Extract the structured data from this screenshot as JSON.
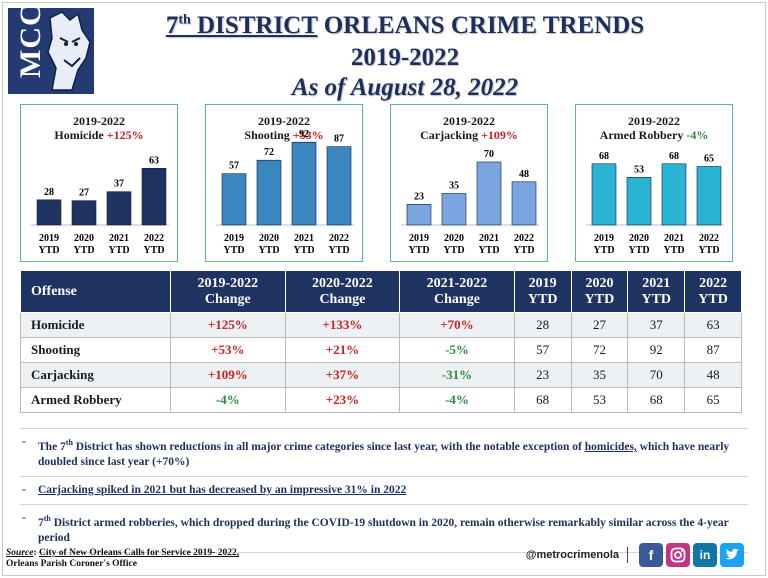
{
  "header": {
    "logo_text": "MCC",
    "title_line1_sup": "th",
    "title_line1_a": "7",
    "title_line1_b": " DISTRICT",
    "title_line1_c": " ORLEANS CRIME TRENDS",
    "title_line2": "2019-2022",
    "title_line3": "As of August 28, 2022"
  },
  "colors": {
    "homicide": "#1f3362",
    "shooting": "#3a86bf",
    "carjacking": "#7aa6e0",
    "armed_robbery": "#2bb3d4",
    "increase": "#cc1f1f",
    "decrease": "#2e8b3e"
  },
  "chart_data": [
    {
      "type": "bar",
      "title": "2019-2022",
      "subtitle": "Homicide",
      "change": "+125%",
      "change_dir": "up",
      "categories": [
        "2019 YTD",
        "2020 YTD",
        "2021 YTD",
        "2022 YTD"
      ],
      "values": [
        28,
        27,
        37,
        63
      ],
      "color": "#1f3362"
    },
    {
      "type": "bar",
      "title": "2019-2022",
      "subtitle": "Shooting",
      "change": "+53%",
      "change_dir": "up",
      "categories": [
        "2019 YTD",
        "2020 YTD",
        "2021 YTD",
        "2022 YTD"
      ],
      "values": [
        57,
        72,
        92,
        87
      ],
      "color": "#3a86bf"
    },
    {
      "type": "bar",
      "title": "2019-2022",
      "subtitle": "Carjacking",
      "change": "+109%",
      "change_dir": "up",
      "categories": [
        "2019 YTD",
        "2020 YTD",
        "2021 YTD",
        "2022 YTD"
      ],
      "values": [
        23,
        35,
        70,
        48
      ],
      "color": "#7aa6e0"
    },
    {
      "type": "bar",
      "title": "2019-2022",
      "subtitle": "Armed Robbery",
      "change": "-4%",
      "change_dir": "down",
      "categories": [
        "2019 YTD",
        "2020 YTD",
        "2021 YTD",
        "2022 YTD"
      ],
      "values": [
        68,
        53,
        68,
        65
      ],
      "color": "#2bb3d4"
    }
  ],
  "table": {
    "headers": [
      [
        "Offense"
      ],
      [
        "2019-2022",
        "Change"
      ],
      [
        "2020-2022",
        "Change"
      ],
      [
        "2021-2022",
        "Change"
      ],
      [
        "2019",
        "YTD"
      ],
      [
        "2020",
        "YTD"
      ],
      [
        "2021",
        "YTD"
      ],
      [
        "2022",
        "YTD"
      ]
    ],
    "rows": [
      {
        "offense": "Homicide",
        "c1": "+125%",
        "c2": "+133%",
        "c3": "+70%",
        "y2019": "28",
        "y2020": "27",
        "y2021": "37",
        "y2022": "63",
        "dirs": [
          "up",
          "up",
          "up"
        ]
      },
      {
        "offense": "Shooting",
        "c1": "+53%",
        "c2": "+21%",
        "c3": "-5%",
        "y2019": "57",
        "y2020": "72",
        "y2021": "92",
        "y2022": "87",
        "dirs": [
          "up",
          "up",
          "down"
        ]
      },
      {
        "offense": "Carjacking",
        "c1": "+109%",
        "c2": "+37%",
        "c3": "-31%",
        "y2019": "23",
        "y2020": "35",
        "y2021": "70",
        "y2022": "48",
        "dirs": [
          "up",
          "up",
          "down"
        ]
      },
      {
        "offense": "Armed Robbery",
        "c1": "-4%",
        "c2": "+23%",
        "c3": "-4%",
        "y2019": "68",
        "y2020": "53",
        "y2021": "68",
        "y2022": "65",
        "dirs": [
          "down",
          "up",
          "down"
        ]
      }
    ]
  },
  "notes": {
    "n1_a": "The 7",
    "n1_sup": "th",
    "n1_b": " District has shown reductions in all major crime categories since last year, with the notable exception of ",
    "n1_link": "homicides,",
    "n1_c": " which have nearly doubled since last year (+70%)",
    "n2": "Carjacking spiked in 2021 but has decreased by an impressive 31% in 2022",
    "n3_a": "7",
    "n3_sup": "th",
    "n3_b": " District armed robberies, which dropped during the COVID-19 shutdown in 2020, remain otherwise remarkably similar across the 4-year period"
  },
  "footer": {
    "source_label": "Source",
    "source_colon": ": ",
    "source_text": "City of New Orleans Calls for Service 2019- 2022,",
    "source_line2": "Orleans Parish Coroner's Office",
    "handle": "@metrocrimenola",
    "facebook_glyph": "f",
    "linkedin_glyph": "in"
  }
}
